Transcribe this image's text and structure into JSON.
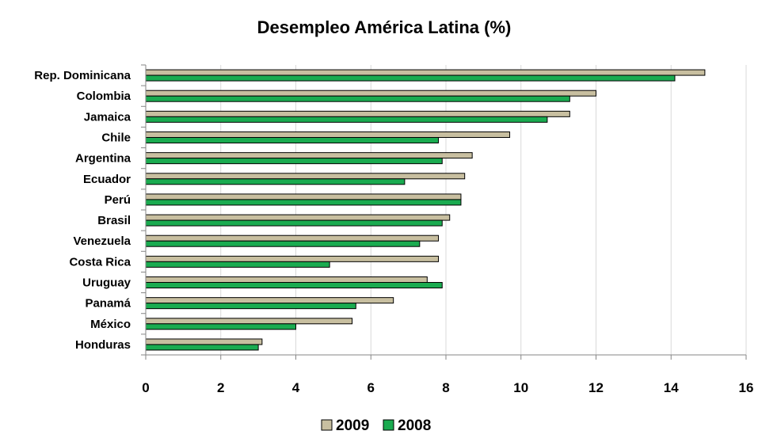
{
  "chart_data": {
    "type": "bar",
    "orientation": "horizontal",
    "title": "Desempleo América Latina (%)",
    "xlabel": "",
    "ylabel": "",
    "xlim": [
      0,
      16
    ],
    "x_ticks": [
      0,
      2,
      4,
      6,
      8,
      10,
      12,
      14,
      16
    ],
    "grid": true,
    "legend_position": "bottom",
    "categories": [
      "Rep. Dominicana",
      "Colombia",
      "Jamaica",
      "Chile",
      "Argentina",
      "Ecuador",
      "Perú",
      "Brasil",
      "Venezuela",
      "Costa Rica",
      "Uruguay",
      "Panamá",
      "México",
      "Honduras"
    ],
    "series": [
      {
        "name": "2009",
        "color": "#c8bfa0",
        "values": [
          14.9,
          12.0,
          11.3,
          9.7,
          8.7,
          8.5,
          8.4,
          8.1,
          7.8,
          7.8,
          7.5,
          6.6,
          5.5,
          3.1
        ]
      },
      {
        "name": "2008",
        "color": "#1aab50",
        "values": [
          14.1,
          11.3,
          10.7,
          7.8,
          7.9,
          6.9,
          8.4,
          7.9,
          7.3,
          4.9,
          7.9,
          5.6,
          4.0,
          3.0
        ]
      }
    ]
  }
}
